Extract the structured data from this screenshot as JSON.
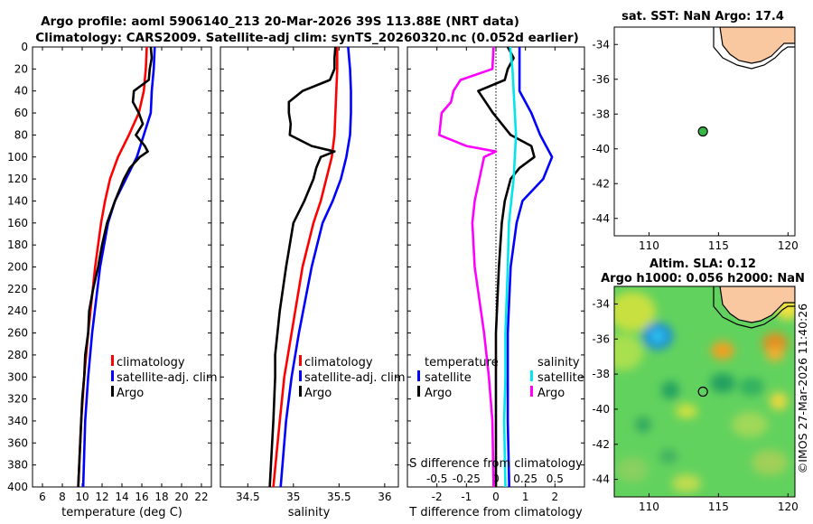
{
  "header": {
    "title_line1": "Argo profile: aoml 5906140_213 20-Mar-2026 39S 113.88E (NRT data)",
    "title_line2": "Climatology: CARS2009. Satellite-adj clim: synTS_20260320.nc (0.052d earlier)"
  },
  "chart_data": [
    {
      "type": "line",
      "panel": "temperature",
      "xlabel": "temperature (deg C)",
      "ylabel": "depth",
      "xlim": [
        5,
        23
      ],
      "ylim": [
        400,
        0
      ],
      "xticks": [
        "6",
        "8",
        "10",
        "12",
        "14",
        "16",
        "18",
        "20",
        "22"
      ],
      "yticks": [
        "0",
        "20",
        "40",
        "60",
        "80",
        "100",
        "120",
        "140",
        "160",
        "180",
        "200",
        "220",
        "240",
        "260",
        "280",
        "300",
        "320",
        "340",
        "360",
        "380",
        "400"
      ],
      "legend": [
        "climatology",
        "satellite-adj. clim",
        "Argo"
      ],
      "series": [
        {
          "name": "climatology",
          "color": "#ff0000",
          "depth": [
            0,
            20,
            40,
            60,
            80,
            100,
            120,
            140,
            160,
            200,
            260,
            300,
            340,
            400
          ],
          "values": [
            16.5,
            16.4,
            16.2,
            15.7,
            14.7,
            13.6,
            12.8,
            12.3,
            11.9,
            11.3,
            10.6,
            10.2,
            9.9,
            9.6
          ]
        },
        {
          "name": "satellite-adj. clim",
          "color": "#0000ff",
          "depth": [
            0,
            20,
            40,
            60,
            80,
            100,
            120,
            140,
            160,
            200,
            260,
            300,
            340,
            400
          ],
          "values": [
            17.3,
            17.2,
            17.0,
            16.9,
            16.2,
            15.5,
            14.4,
            13.3,
            12.6,
            11.8,
            11.0,
            10.6,
            10.3,
            10.1
          ]
        },
        {
          "name": "Argo",
          "color": "#000000",
          "depth": [
            0,
            10,
            20,
            30,
            40,
            50,
            60,
            70,
            80,
            90,
            95,
            100,
            110,
            120,
            140,
            160,
            180,
            200,
            220,
            240,
            260,
            280,
            300,
            320,
            340,
            360,
            380,
            400
          ],
          "values": [
            16.9,
            17.0,
            16.8,
            16.7,
            15.2,
            15.1,
            15.7,
            16.1,
            15.4,
            16.3,
            16.6,
            15.8,
            14.8,
            14.2,
            13.3,
            12.5,
            12.0,
            11.6,
            11.1,
            10.7,
            10.6,
            10.3,
            10.2,
            10.0,
            9.9,
            9.8,
            9.7,
            9.6
          ]
        }
      ]
    },
    {
      "type": "line",
      "panel": "salinity",
      "xlabel": "salinity",
      "ylabel": "depth",
      "xlim": [
        34.2,
        36.15
      ],
      "ylim": [
        400,
        0
      ],
      "xticks": [
        "34.5",
        "35",
        "35.5",
        "36"
      ],
      "legend": [
        "climatology",
        "satellite-adj. clim",
        "Argo"
      ],
      "series": [
        {
          "name": "climatology",
          "color": "#ff0000",
          "depth": [
            0,
            20,
            40,
            60,
            80,
            100,
            120,
            140,
            160,
            200,
            260,
            300,
            340,
            400
          ],
          "values": [
            35.48,
            35.48,
            35.47,
            35.46,
            35.45,
            35.42,
            35.36,
            35.3,
            35.22,
            35.1,
            34.98,
            34.9,
            34.85,
            34.78
          ]
        },
        {
          "name": "satellite-adj. clim",
          "color": "#0000ff",
          "depth": [
            0,
            20,
            40,
            60,
            80,
            100,
            120,
            140,
            160,
            200,
            260,
            300,
            340,
            400
          ],
          "values": [
            35.6,
            35.62,
            35.63,
            35.63,
            35.62,
            35.58,
            35.52,
            35.43,
            35.32,
            35.2,
            35.06,
            34.98,
            34.92,
            34.86
          ]
        },
        {
          "name": "Argo",
          "color": "#000000",
          "depth": [
            0,
            10,
            20,
            30,
            40,
            50,
            60,
            70,
            80,
            90,
            95,
            100,
            110,
            120,
            140,
            160,
            200,
            240,
            280,
            300,
            340,
            400
          ],
          "values": [
            35.46,
            35.45,
            35.45,
            35.4,
            35.1,
            34.95,
            34.95,
            34.97,
            34.96,
            35.2,
            35.45,
            35.3,
            35.25,
            35.22,
            35.12,
            35.0,
            34.92,
            34.85,
            34.8,
            34.8,
            34.78,
            34.74
          ]
        }
      ]
    },
    {
      "type": "line",
      "panel": "difference",
      "xlabel": "T difference from climatology",
      "xlabel2": "S difference from climatology",
      "xlim": [
        -3,
        3
      ],
      "ylim": [
        400,
        0
      ],
      "xticks": [
        "-2",
        "-1",
        "0",
        "1",
        "2"
      ],
      "xticks2": [
        "-0.5",
        "-0.25",
        "0",
        "0.25",
        "0.5"
      ],
      "legend_groups": [
        {
          "title": "temperature",
          "items": [
            "satellite",
            "Argo"
          ]
        },
        {
          "title": "salinity",
          "items": [
            "satellite",
            "Argo"
          ]
        }
      ],
      "series": [
        {
          "name": "temperature satellite",
          "color": "#0000ff",
          "depth": [
            0,
            20,
            40,
            60,
            80,
            100,
            120,
            140,
            160,
            200,
            260,
            300,
            340,
            400
          ],
          "values": [
            0.8,
            0.8,
            0.8,
            1.2,
            1.5,
            1.9,
            1.6,
            0.9,
            0.7,
            0.5,
            0.4,
            0.4,
            0.4,
            0.45
          ]
        },
        {
          "name": "temperature Argo",
          "color": "#000000",
          "depth": [
            0,
            10,
            20,
            30,
            40,
            60,
            80,
            90,
            100,
            110,
            120,
            140,
            160,
            200,
            260,
            300,
            340,
            400
          ],
          "values": [
            0.4,
            0.6,
            0.4,
            0.3,
            -0.6,
            -0.1,
            0.5,
            1.2,
            1.3,
            0.8,
            0.5,
            0.3,
            0.2,
            0.1,
            0.0,
            0.0,
            0.0,
            0.0
          ]
        },
        {
          "name": "salinity satellite",
          "color": "#00e5ee",
          "depth": [
            0,
            20,
            40,
            60,
            80,
            100,
            120,
            140,
            160,
            200,
            260,
            300,
            340,
            400
          ],
          "values": [
            0.12,
            0.14,
            0.15,
            0.16,
            0.17,
            0.16,
            0.15,
            0.13,
            0.11,
            0.1,
            0.08,
            0.08,
            0.07,
            0.08
          ]
        },
        {
          "name": "salinity Argo",
          "color": "#ff00ff",
          "depth": [
            0,
            20,
            30,
            40,
            50,
            60,
            80,
            90,
            95,
            100,
            110,
            120,
            140,
            160,
            200,
            260,
            300,
            340,
            400
          ],
          "values": [
            -0.02,
            -0.03,
            -0.3,
            -0.36,
            -0.38,
            -0.46,
            -0.48,
            -0.25,
            0.0,
            -0.1,
            -0.12,
            -0.14,
            -0.18,
            -0.2,
            -0.18,
            -0.1,
            -0.06,
            -0.03,
            -0.02
          ]
        }
      ]
    },
    {
      "type": "map",
      "panel": "sst",
      "title": "sat. SST: NaN Argo: 17.4",
      "xlim": [
        107.5,
        120.5
      ],
      "ylim": [
        -45,
        -33
      ],
      "xticks": [
        "110",
        "115",
        "120"
      ],
      "yticks": [
        "-34",
        "-36",
        "-38",
        "-40",
        "-42",
        "-44"
      ],
      "marker": {
        "lon": 113.88,
        "lat": -39.0
      }
    },
    {
      "type": "heatmap",
      "panel": "altimetry",
      "title_line1": "Altim. SLA: 0.12",
      "title_line2": "Argo h1000: 0.056 h2000: NaN",
      "xlim": [
        107.5,
        120.5
      ],
      "ylim": [
        -45,
        -33
      ],
      "xticks": [
        "110",
        "115",
        "120"
      ],
      "yticks": [
        "-34",
        "-36",
        "-38",
        "-40",
        "-42",
        "-44"
      ],
      "marker": {
        "lon": 113.88,
        "lat": -39.0
      }
    }
  ],
  "footer": {
    "credit": "©IMOS 27-Mar-2026 11:40:26"
  },
  "colors": {
    "land": "#fac8a0",
    "sla_bg": "#60d060"
  }
}
